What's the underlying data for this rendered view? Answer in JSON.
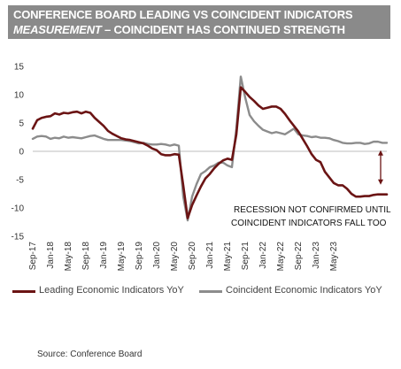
{
  "title": {
    "line1": "CONFERENCE BOARD LEADING VS COINCIDENT INDICATORS",
    "line2_italic": "MEASUREMENT",
    "line2_rest": " – COINCIDENT HAS CONTINUED STRENGTH"
  },
  "colors": {
    "leading": "#6b1414",
    "coincident": "#8c8c8c",
    "banner": "#8a8a8a",
    "arrow": "#6b1414"
  },
  "annotation": {
    "line1": "RECESSION NOT CONFIRMED UNTIL",
    "line2": "COINCIDENT INDICATORS FALL TOO"
  },
  "source": "Source:  Conference  Board",
  "chart_data": {
    "type": "line",
    "x_start": "Sep-17",
    "x_end": "Aug-23",
    "x_ticks": [
      "Sep-17",
      "Jan-18",
      "May-18",
      "Sep-18",
      "Jan-19",
      "May-19",
      "Sep-19",
      "Jan-20",
      "May-20",
      "Sep-20",
      "Jan-21",
      "May-21",
      "Sep-21",
      "Jan-22",
      "May-22",
      "Sep-22",
      "Jan-23",
      "May-23"
    ],
    "ylim": [
      -15,
      15
    ],
    "y_ticks": [
      15,
      10,
      5,
      0,
      -5,
      -10,
      -15
    ],
    "grid": false,
    "legend_position": "bottom",
    "series": [
      {
        "name": "Leading Economic Indicators YoY",
        "values": [
          4.0,
          5.5,
          5.9,
          6.1,
          6.2,
          6.7,
          6.5,
          6.8,
          6.7,
          6.9,
          7.0,
          6.7,
          7.0,
          6.8,
          5.9,
          5.2,
          4.5,
          3.6,
          3.1,
          2.7,
          2.3,
          2.1,
          2.0,
          1.8,
          1.6,
          1.4,
          1.0,
          0.5,
          0.2,
          -0.5,
          -0.7,
          -0.7,
          -0.5,
          -0.6,
          -6.0,
          -11.8,
          -9.5,
          -7.8,
          -6.2,
          -4.8,
          -4.0,
          -3.0,
          -2.2,
          -1.6,
          -1.3,
          -1.5,
          3.0,
          11.3,
          10.5,
          9.6,
          8.9,
          8.1,
          7.5,
          7.7,
          7.9,
          7.9,
          7.5,
          6.6,
          5.5,
          4.5,
          3.5,
          2.2,
          0.9,
          -0.5,
          -1.5,
          -1.9,
          -3.6,
          -4.6,
          -5.6,
          -6.0,
          -6.0,
          -6.6,
          -7.5,
          -8.0,
          -8.0,
          -7.9,
          -7.9,
          -7.7,
          -7.6,
          -7.6,
          -7.6
        ]
      },
      {
        "name": "Coincident Economic Indicators YoY",
        "values": [
          2.2,
          2.6,
          2.7,
          2.6,
          2.2,
          2.4,
          2.3,
          2.6,
          2.4,
          2.5,
          2.4,
          2.3,
          2.5,
          2.7,
          2.8,
          2.5,
          2.2,
          2.0,
          2.0,
          2.0,
          2.0,
          1.9,
          1.8,
          1.6,
          1.4,
          1.5,
          1.3,
          1.2,
          1.2,
          1.3,
          1.2,
          1.0,
          1.2,
          1.0,
          -8.0,
          -12.2,
          -8.0,
          -5.8,
          -4.0,
          -3.5,
          -2.8,
          -2.5,
          -2.0,
          -2.0,
          -2.5,
          -2.8,
          4.0,
          13.2,
          9.5,
          6.4,
          5.3,
          4.5,
          3.8,
          3.5,
          3.2,
          3.4,
          3.2,
          3.0,
          3.5,
          4.0,
          3.0,
          2.8,
          2.7,
          2.5,
          2.6,
          2.4,
          2.4,
          2.3,
          2.0,
          1.8,
          1.5,
          1.4,
          1.4,
          1.5,
          1.5,
          1.3,
          1.4,
          1.7,
          1.7,
          1.5,
          1.5
        ]
      }
    ]
  }
}
